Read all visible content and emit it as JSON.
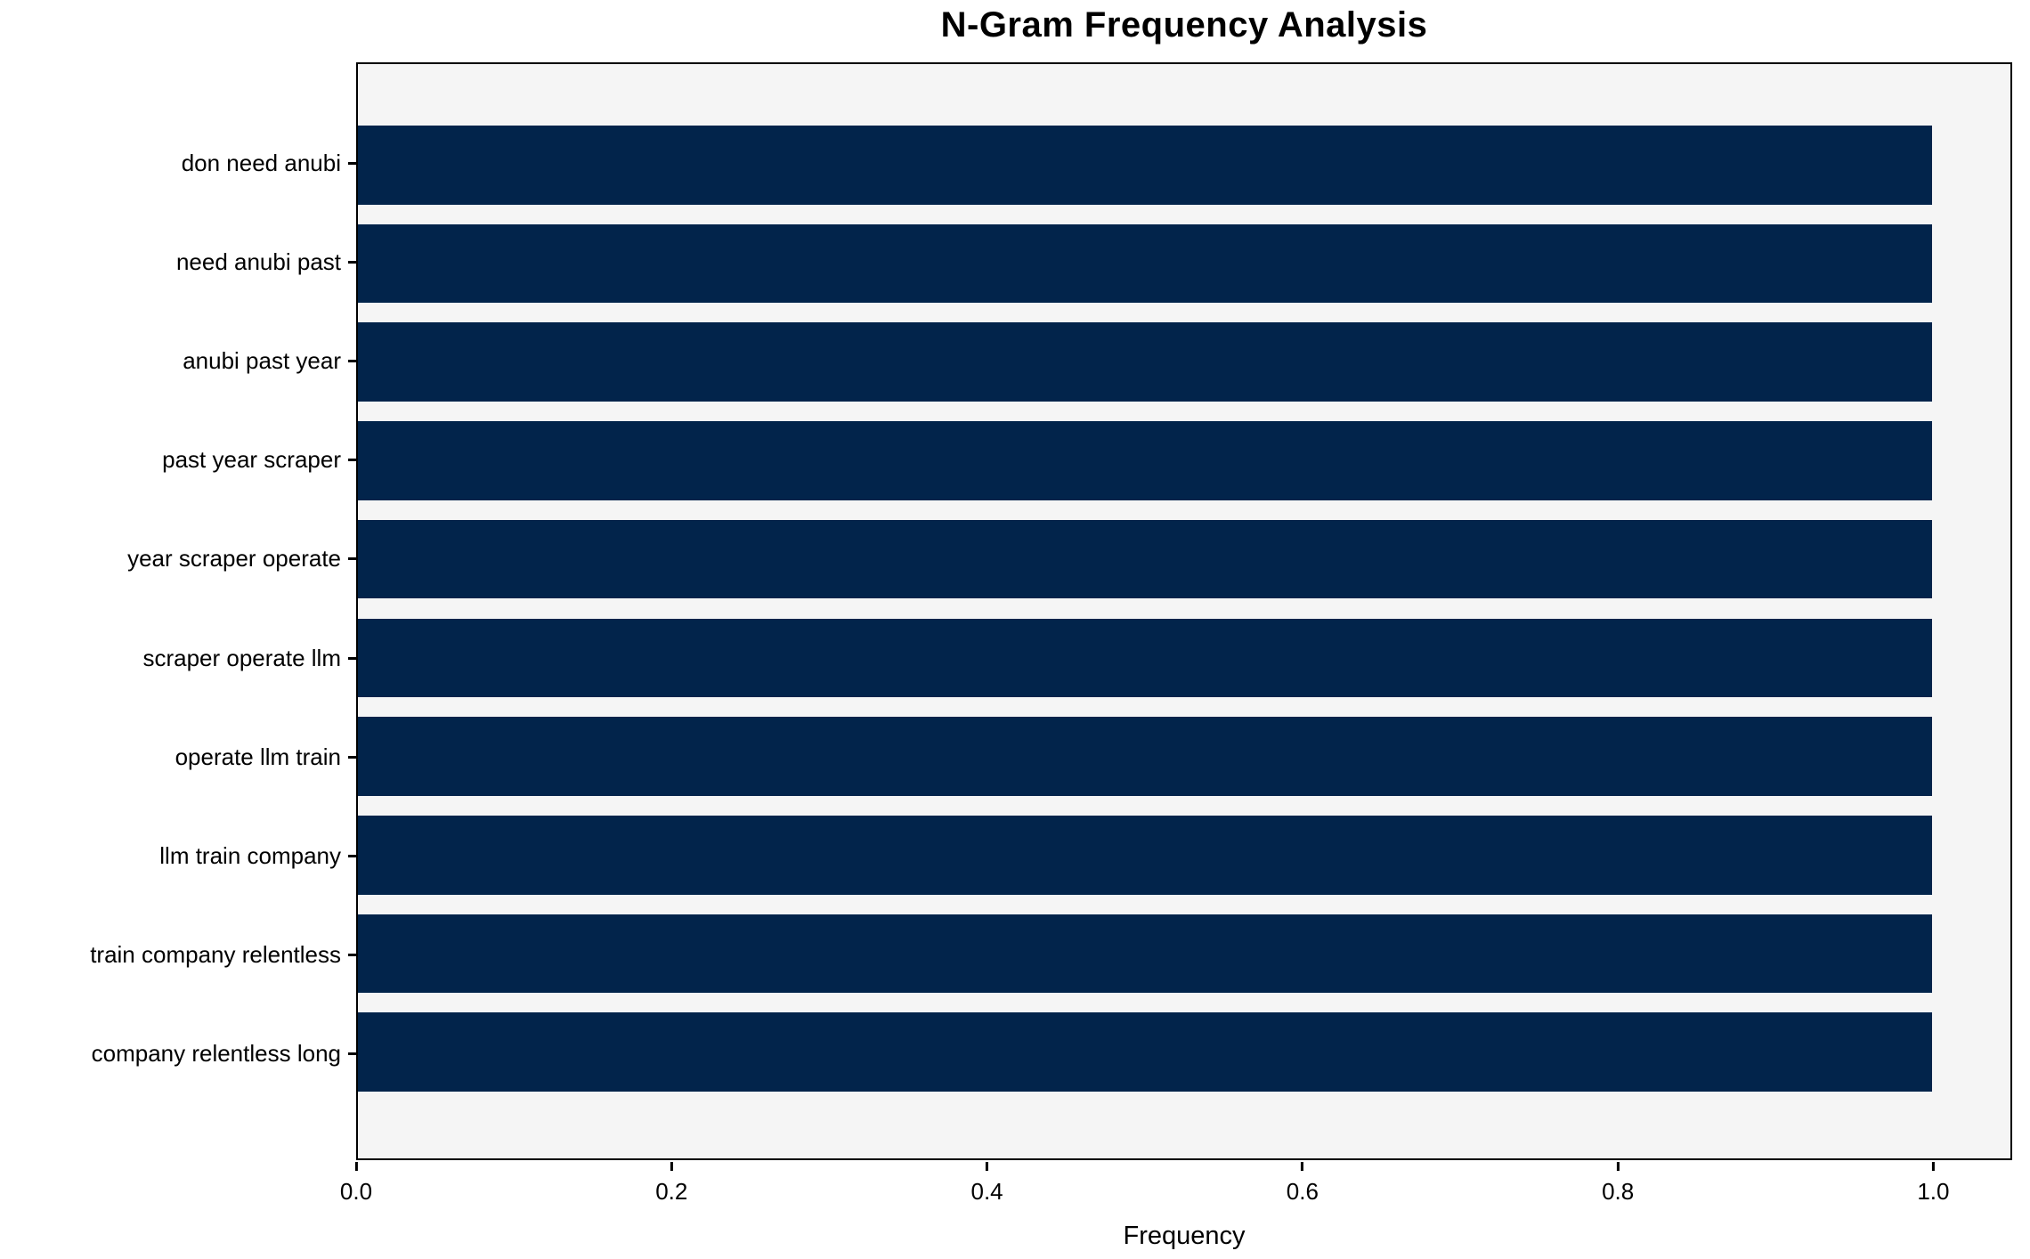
{
  "chart_data": {
    "type": "bar",
    "orientation": "horizontal",
    "title": "N-Gram Frequency Analysis",
    "xlabel": "Frequency",
    "ylabel": "",
    "categories": [
      "don need anubi",
      "need anubi past",
      "anubi past year",
      "past year scraper",
      "year scraper operate",
      "scraper operate llm",
      "operate llm train",
      "llm train company",
      "train company relentless",
      "company relentless long"
    ],
    "values": [
      1.0,
      1.0,
      1.0,
      1.0,
      1.0,
      1.0,
      1.0,
      1.0,
      1.0,
      1.0
    ],
    "xlim": [
      0.0,
      1.05
    ],
    "x_ticks": [
      0.0,
      0.2,
      0.4,
      0.6,
      0.8,
      1.0
    ],
    "x_tick_labels": [
      "0.0",
      "0.2",
      "0.4",
      "0.6",
      "0.8",
      "1.0"
    ],
    "grid": false,
    "legend": "none",
    "colors": {
      "bar": "#02244b",
      "plot_background": "#f5f5f5",
      "figure_background": "#ffffff",
      "spine": "#000000",
      "text": "#000000"
    }
  }
}
